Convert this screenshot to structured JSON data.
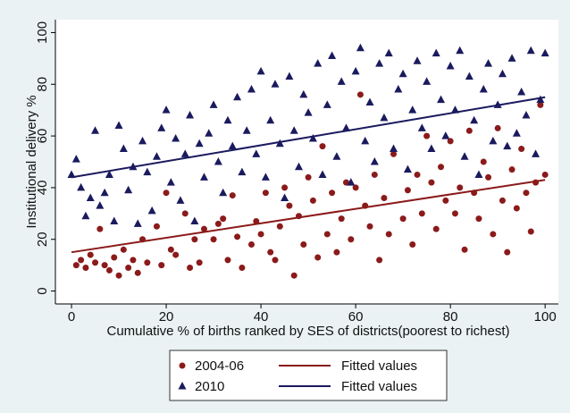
{
  "chart_data": {
    "type": "scatter",
    "xlabel": "Cumulative % of births ranked by SES of districts(poorest to richest)",
    "ylabel": "Institutional delivery %",
    "xlim": [
      -3.4,
      102.8
    ],
    "ylim": [
      -5,
      105
    ],
    "xticks": [
      0,
      20,
      40,
      60,
      80,
      100
    ],
    "yticks": [
      0,
      20,
      40,
      60,
      80,
      100
    ],
    "grid": false,
    "legend": "bottom",
    "series": [
      {
        "name": "2004-06",
        "type": "scatter",
        "marker": "circle",
        "color": "#8b1a1a",
        "x": [
          1,
          2,
          3,
          4,
          5,
          6,
          7,
          8,
          9,
          10,
          11,
          12,
          13,
          14,
          15,
          16,
          18,
          19,
          20,
          21,
          22,
          24,
          25,
          26,
          27,
          28,
          30,
          31,
          32,
          33,
          34,
          35,
          36,
          38,
          39,
          40,
          41,
          42,
          43,
          44,
          45,
          46,
          47,
          48,
          49,
          50,
          51,
          52,
          53,
          54,
          55,
          56,
          57,
          58,
          59,
          60,
          61,
          62,
          63,
          64,
          65,
          66,
          67,
          68,
          70,
          71,
          72,
          73,
          74,
          75,
          76,
          77,
          78,
          79,
          80,
          81,
          82,
          83,
          84,
          85,
          86,
          87,
          88,
          89,
          90,
          91,
          92,
          93,
          94,
          95,
          96,
          97,
          98,
          99,
          100
        ],
        "values": [
          10,
          12,
          9,
          14,
          11,
          24,
          10,
          8,
          13,
          6,
          16,
          9,
          12,
          7,
          20,
          11,
          25,
          10,
          38,
          16,
          14,
          30,
          9,
          20,
          11,
          24,
          20,
          26,
          28,
          12,
          37,
          21,
          9,
          18,
          27,
          22,
          38,
          15,
          12,
          25,
          40,
          33,
          6,
          29,
          18,
          44,
          35,
          13,
          56,
          22,
          38,
          15,
          28,
          42,
          20,
          40,
          76,
          33,
          25,
          45,
          12,
          36,
          22,
          53,
          28,
          39,
          18,
          45,
          30,
          60,
          42,
          24,
          48,
          35,
          58,
          30,
          40,
          16,
          62,
          38,
          28,
          50,
          44,
          22,
          63,
          35,
          15,
          47,
          32,
          55,
          38,
          23,
          42,
          72,
          45
        ]
      },
      {
        "name": "2010",
        "type": "scatter",
        "marker": "triangle",
        "color": "#1a1a5e",
        "x": [
          0,
          1,
          2,
          3,
          4,
          5,
          6,
          7,
          8,
          9,
          10,
          11,
          12,
          13,
          14,
          15,
          16,
          17,
          18,
          19,
          20,
          21,
          22,
          23,
          24,
          25,
          26,
          27,
          28,
          29,
          30,
          31,
          32,
          33,
          34,
          35,
          36,
          37,
          38,
          39,
          40,
          41,
          42,
          43,
          44,
          45,
          46,
          47,
          48,
          49,
          50,
          51,
          52,
          53,
          54,
          55,
          56,
          57,
          58,
          59,
          60,
          61,
          62,
          63,
          64,
          65,
          66,
          67,
          68,
          69,
          70,
          71,
          72,
          73,
          74,
          75,
          76,
          77,
          78,
          79,
          80,
          81,
          82,
          83,
          84,
          85,
          86,
          87,
          88,
          89,
          90,
          91,
          92,
          93,
          94,
          95,
          96,
          97,
          98,
          99,
          100
        ],
        "values": [
          45,
          51,
          40,
          29,
          36,
          62,
          33,
          38,
          45,
          27,
          64,
          55,
          39,
          48,
          26,
          58,
          46,
          31,
          52,
          63,
          70,
          42,
          59,
          35,
          53,
          68,
          27,
          57,
          44,
          61,
          72,
          50,
          38,
          66,
          56,
          75,
          46,
          62,
          78,
          53,
          85,
          44,
          66,
          80,
          57,
          36,
          83,
          62,
          48,
          76,
          69,
          59,
          88,
          45,
          72,
          91,
          52,
          81,
          63,
          42,
          85,
          94,
          58,
          73,
          50,
          88,
          67,
          92,
          55,
          78,
          84,
          47,
          70,
          89,
          63,
          81,
          55,
          92,
          74,
          60,
          87,
          70,
          93,
          52,
          83,
          66,
          45,
          78,
          88,
          58,
          72,
          84,
          56,
          90,
          61,
          77,
          68,
          93,
          53,
          74,
          92
        ]
      },
      {
        "name": "Fitted values",
        "type": "line",
        "color": "#8b1a1a",
        "x": [
          0,
          100
        ],
        "values": [
          15,
          43
        ]
      },
      {
        "name": "Fitted values",
        "type": "line",
        "color": "#1a1a5e",
        "x": [
          0,
          100
        ],
        "values": [
          44,
          75
        ]
      }
    ]
  }
}
